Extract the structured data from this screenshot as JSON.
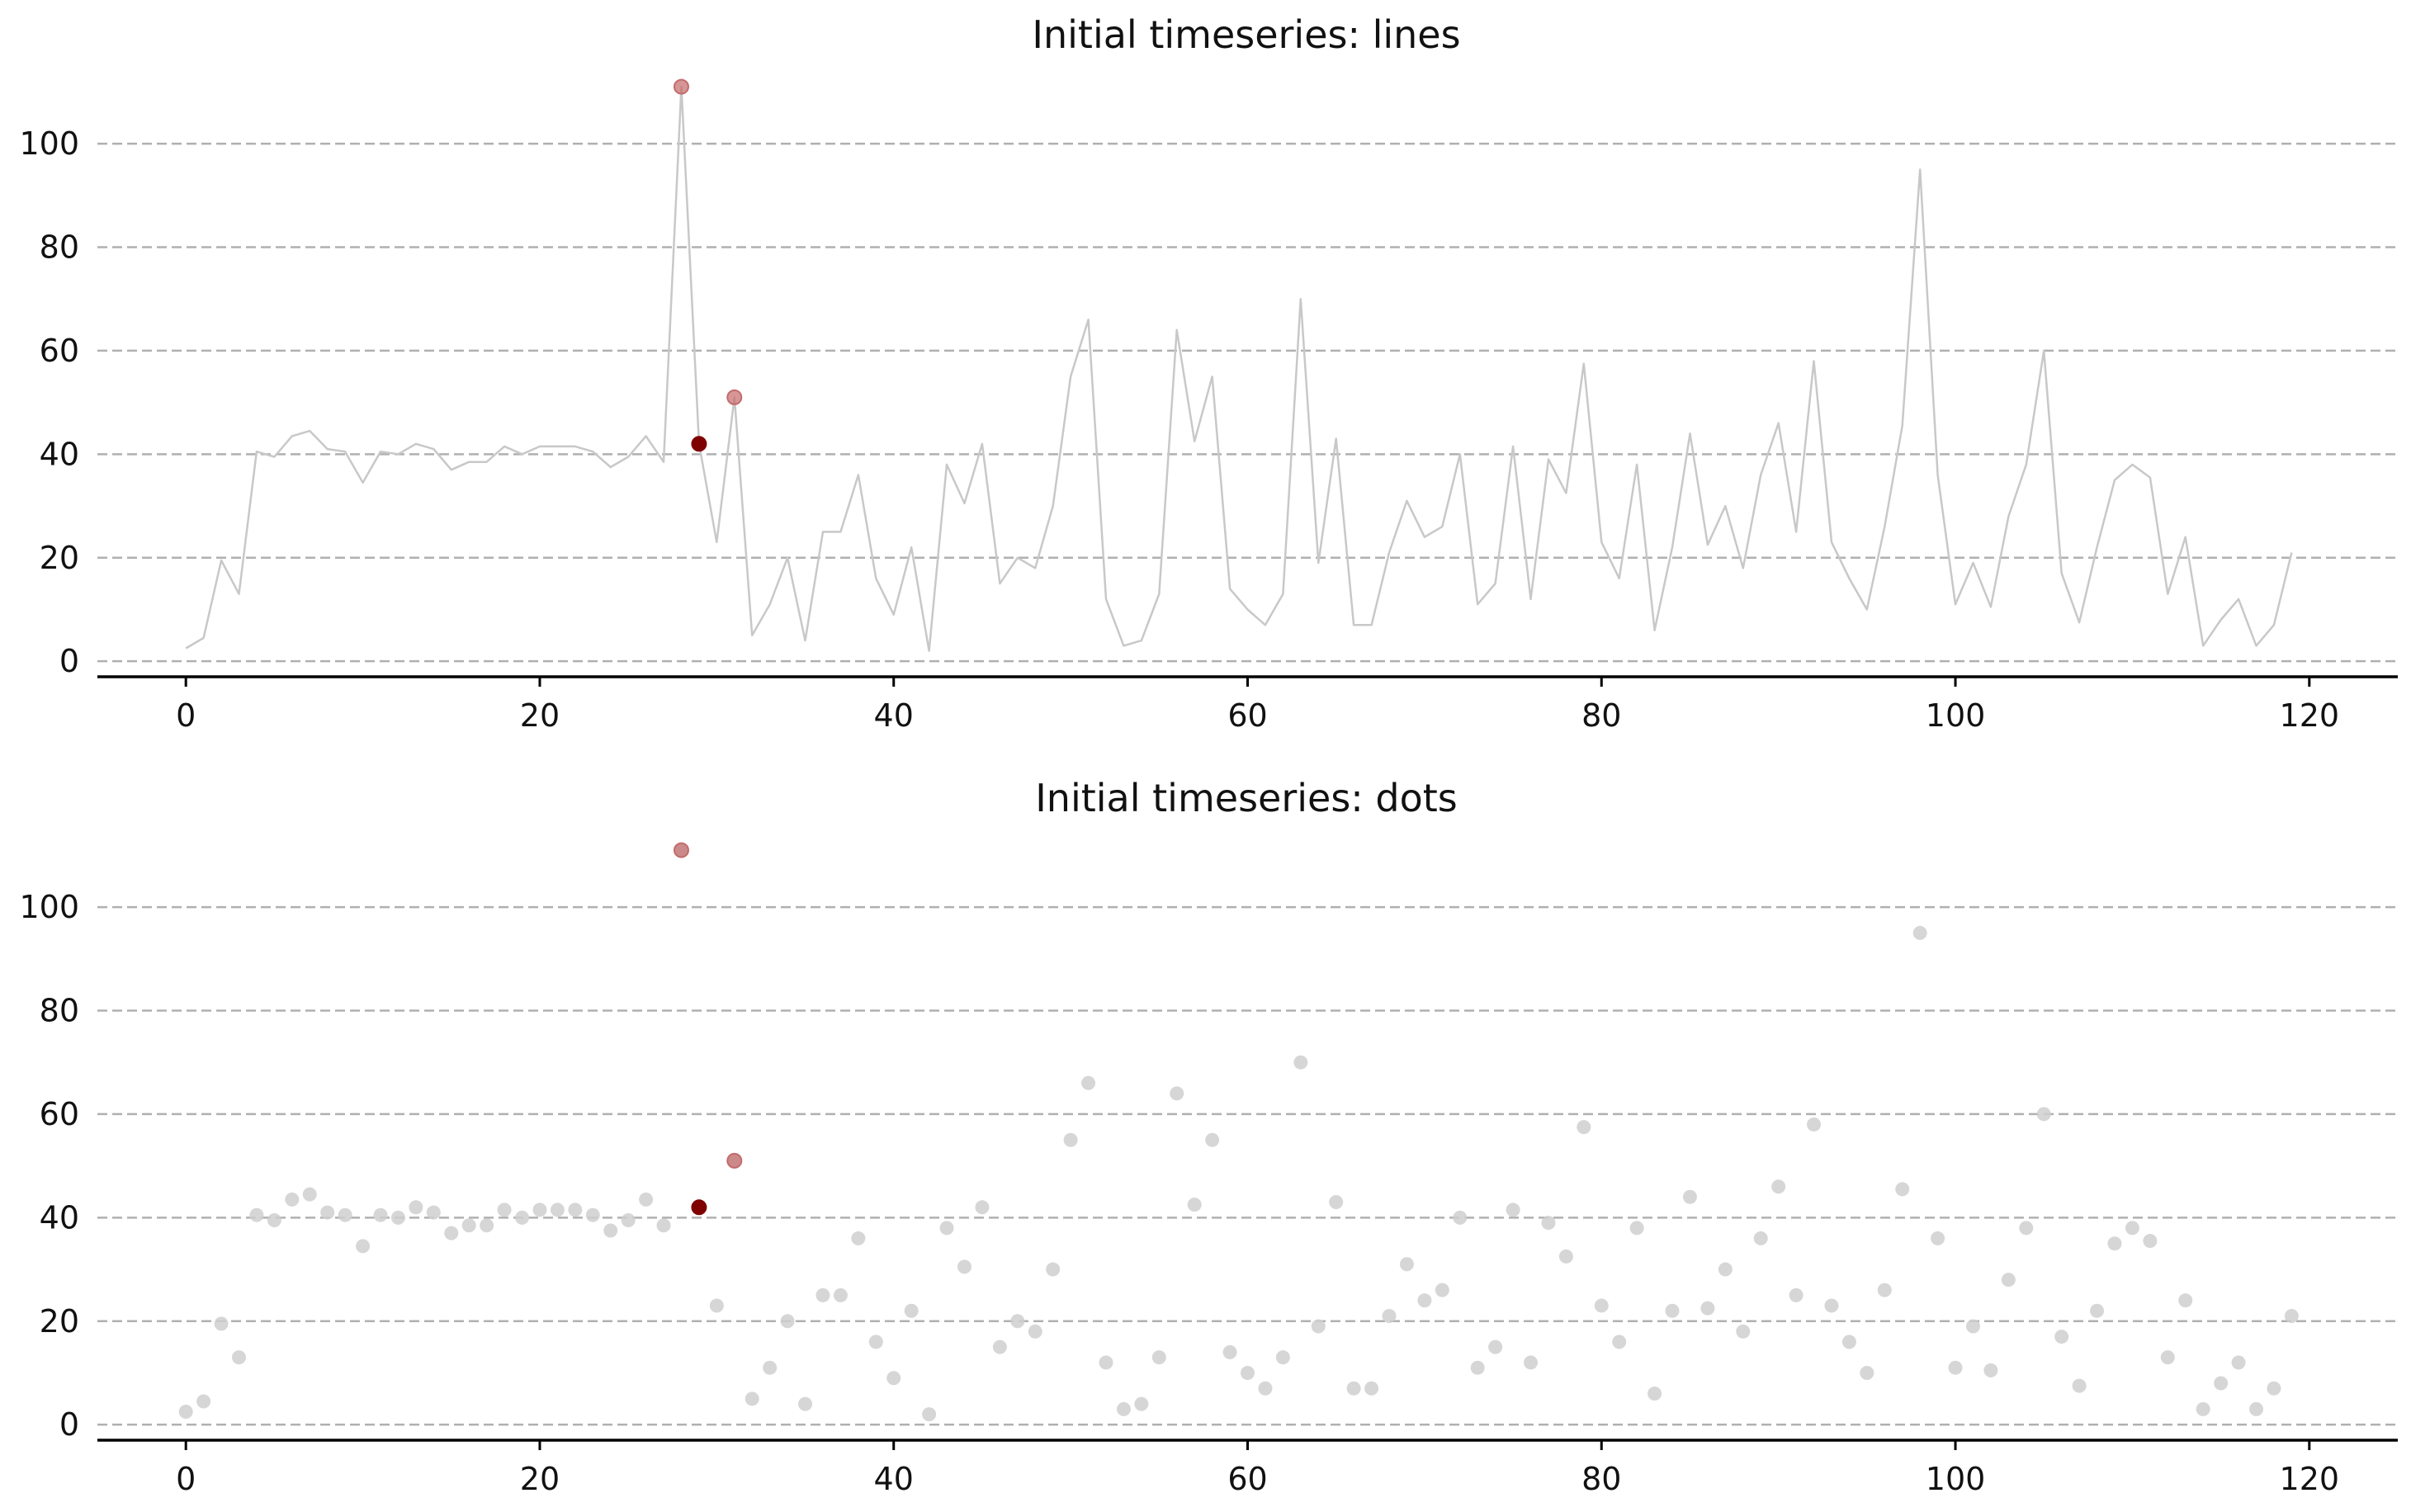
{
  "colors": {
    "series_line": "#c8c8c8",
    "series_dot": "#cfcfcf",
    "highlight_light": "#c46a6a",
    "highlight_dark": "#7f0000",
    "grid": "#b0b0b0"
  },
  "chart_data": [
    {
      "type": "line",
      "title": "Initial timeseries: lines",
      "xlabel": "",
      "ylabel": "",
      "xlim": [
        -5,
        125
      ],
      "ylim": [
        -3,
        115
      ],
      "xticks": [
        0,
        20,
        40,
        60,
        80,
        100,
        120
      ],
      "yticks": [
        0,
        20,
        40,
        60,
        80,
        100
      ],
      "grid": "horizontal dashed",
      "series": [
        {
          "x": [
            0,
            1,
            2,
            3,
            4,
            5,
            6,
            7,
            8,
            9,
            10,
            11,
            12,
            13,
            14,
            15,
            16,
            17,
            18,
            19,
            20,
            21,
            22,
            23,
            24,
            25,
            26,
            27,
            28,
            29,
            30,
            31,
            32,
            33,
            34,
            35,
            36,
            37,
            38,
            39,
            40,
            41,
            42,
            43,
            44,
            45,
            46,
            47,
            48,
            49,
            50,
            51,
            52,
            53,
            54,
            55,
            56,
            57,
            58,
            59,
            60,
            61,
            62,
            63,
            64,
            65,
            66,
            67,
            68,
            69,
            70,
            71,
            72,
            73,
            74,
            75,
            76,
            77,
            78,
            79,
            80,
            81,
            82,
            83,
            84,
            85,
            86,
            87,
            88,
            89,
            90,
            91,
            92,
            93,
            94,
            95,
            96,
            97,
            98,
            99,
            100,
            101,
            102,
            103,
            104,
            105,
            106,
            107,
            108,
            109,
            110,
            111,
            112,
            113,
            114,
            115,
            116,
            117,
            118,
            119
          ],
          "values": [
            2.5,
            4.5,
            19.5,
            13,
            40.5,
            39.5,
            43.5,
            44.5,
            41,
            40.5,
            34.5,
            40.5,
            40,
            42,
            41,
            37,
            38.5,
            38.5,
            41.5,
            40,
            41.5,
            41.5,
            41.5,
            40.5,
            37.5,
            39.5,
            43.5,
            38.5,
            111,
            42,
            23,
            51,
            5,
            11,
            20,
            4,
            25,
            25,
            36,
            16,
            9,
            22,
            2,
            38,
            30.5,
            42,
            15,
            20,
            18,
            30,
            55,
            66,
            12,
            3,
            4,
            13,
            64,
            42.5,
            55,
            14,
            10,
            7,
            13,
            70,
            19,
            43,
            7,
            7,
            21,
            31,
            24,
            26,
            40,
            11,
            15,
            41.5,
            12,
            39,
            32.5,
            57.5,
            23,
            16,
            38,
            6,
            22,
            44,
            22.5,
            30,
            18,
            36,
            46,
            25,
            58,
            23,
            16,
            10,
            26,
            45.5,
            95,
            36,
            11,
            19,
            10.5,
            28,
            38,
            60,
            17,
            7.5,
            22,
            35,
            38,
            35.5,
            13,
            24,
            3,
            8,
            12,
            3,
            7,
            21
          ]
        }
      ],
      "highlights": [
        {
          "x": 28,
          "y": 111,
          "color": "highlight_light"
        },
        {
          "x": 29,
          "y": 42,
          "color": "highlight_dark"
        },
        {
          "x": 31,
          "y": 51,
          "color": "highlight_light"
        }
      ]
    },
    {
      "type": "scatter",
      "title": "Initial timeseries: dots",
      "xlabel": "",
      "ylabel": "",
      "xlim": [
        -5,
        125
      ],
      "ylim": [
        -3,
        115
      ],
      "xticks": [
        0,
        20,
        40,
        60,
        80,
        100,
        120
      ],
      "yticks": [
        0,
        20,
        40,
        60,
        80,
        100
      ],
      "grid": "horizontal dashed",
      "series": [
        {
          "x": [
            0,
            1,
            2,
            3,
            4,
            5,
            6,
            7,
            8,
            9,
            10,
            11,
            12,
            13,
            14,
            15,
            16,
            17,
            18,
            19,
            20,
            21,
            22,
            23,
            24,
            25,
            26,
            27,
            28,
            29,
            30,
            31,
            32,
            33,
            34,
            35,
            36,
            37,
            38,
            39,
            40,
            41,
            42,
            43,
            44,
            45,
            46,
            47,
            48,
            49,
            50,
            51,
            52,
            53,
            54,
            55,
            56,
            57,
            58,
            59,
            60,
            61,
            62,
            63,
            64,
            65,
            66,
            67,
            68,
            69,
            70,
            71,
            72,
            73,
            74,
            75,
            76,
            77,
            78,
            79,
            80,
            81,
            82,
            83,
            84,
            85,
            86,
            87,
            88,
            89,
            90,
            91,
            92,
            93,
            94,
            95,
            96,
            97,
            98,
            99,
            100,
            101,
            102,
            103,
            104,
            105,
            106,
            107,
            108,
            109,
            110,
            111,
            112,
            113,
            114,
            115,
            116,
            117,
            118,
            119
          ],
          "values": [
            2.5,
            4.5,
            19.5,
            13,
            40.5,
            39.5,
            43.5,
            44.5,
            41,
            40.5,
            34.5,
            40.5,
            40,
            42,
            41,
            37,
            38.5,
            38.5,
            41.5,
            40,
            41.5,
            41.5,
            41.5,
            40.5,
            37.5,
            39.5,
            43.5,
            38.5,
            111,
            42,
            23,
            51,
            5,
            11,
            20,
            4,
            25,
            25,
            36,
            16,
            9,
            22,
            2,
            38,
            30.5,
            42,
            15,
            20,
            18,
            30,
            55,
            66,
            12,
            3,
            4,
            13,
            64,
            42.5,
            55,
            14,
            10,
            7,
            13,
            70,
            19,
            43,
            7,
            7,
            21,
            31,
            24,
            26,
            40,
            11,
            15,
            41.5,
            12,
            39,
            32.5,
            57.5,
            23,
            16,
            38,
            6,
            22,
            44,
            22.5,
            30,
            18,
            36,
            46,
            25,
            58,
            23,
            16,
            10,
            26,
            45.5,
            95,
            36,
            11,
            19,
            10.5,
            28,
            38,
            60,
            17,
            7.5,
            22,
            35,
            38,
            35.5,
            13,
            24,
            3,
            8,
            12,
            3,
            7,
            21
          ]
        }
      ],
      "highlights": [
        {
          "x": 28,
          "y": 111,
          "color": "highlight_light"
        },
        {
          "x": 29,
          "y": 42,
          "color": "highlight_dark"
        },
        {
          "x": 31,
          "y": 51,
          "color": "highlight_light"
        }
      ]
    }
  ]
}
